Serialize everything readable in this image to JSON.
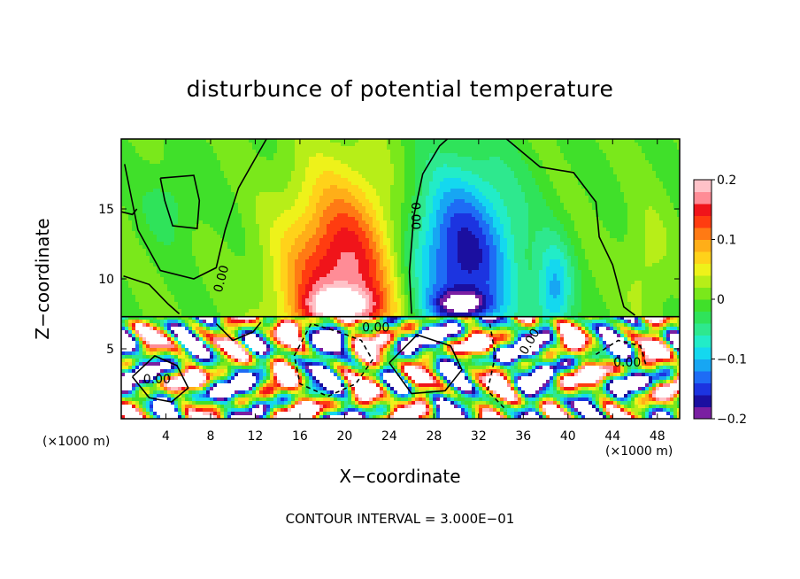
{
  "chart_data": {
    "type": "heatmap",
    "title": "disturbunce of potential temperature",
    "xlabel": "X−coordinate",
    "ylabel": "Z−coordinate",
    "x_unit": "(×1000 m)",
    "z_unit": "(×1000 m)",
    "footer": "CONTOUR INTERVAL = 3.000E−01",
    "x_ticks": [
      4,
      8,
      12,
      16,
      20,
      24,
      28,
      32,
      36,
      40,
      44,
      48
    ],
    "y_ticks": [
      5,
      10,
      15
    ],
    "xlim": [
      0,
      50
    ],
    "ylim": [
      0,
      20
    ],
    "colorbar": {
      "range": [
        -0.2,
        0.2
      ],
      "ticks": [
        0.2,
        0.1,
        0,
        -0.1,
        -0.2
      ],
      "tick_labels": [
        "0.2",
        "0.1",
        "0",
        "−0.1",
        "−0.2"
      ],
      "colors": [
        "#7a1fa2",
        "#1b0fa0",
        "#1c34e0",
        "#1e6cf5",
        "#17a6f3",
        "#14d8ef",
        "#22ecc8",
        "#2ee88e",
        "#2fe35a",
        "#40e02a",
        "#7ae81b",
        "#b7ee18",
        "#eef21a",
        "#ffd21a",
        "#ffae18",
        "#ff7a14",
        "#ff3c10",
        "#f0141a",
        "#ff8c96",
        "#ffc2c8"
      ]
    },
    "contour_labels": [
      {
        "text": "0.00",
        "x": 9.0,
        "z": 10.0,
        "angle": -75
      },
      {
        "text": "0.00",
        "x": 26.3,
        "z": 14.5,
        "angle": 90
      },
      {
        "text": "0.00",
        "x": 3.2,
        "z": 2.8,
        "angle": 0
      },
      {
        "text": "0.00",
        "x": 45.3,
        "z": 4.0,
        "angle": 0
      },
      {
        "text": "0.00",
        "x": 22.8,
        "z": 6.5,
        "angle": 0
      },
      {
        "text": "0.00",
        "x": 36.6,
        "z": 5.5,
        "angle": -60
      }
    ],
    "upper_features": [
      {
        "x": 19.8,
        "z": 9.5,
        "sx": 5.2,
        "sz": 7.5,
        "amp": 0.18,
        "label": "warm plume"
      },
      {
        "x": 30.5,
        "z": 11.5,
        "sx": 5.0,
        "sz": 6.5,
        "amp": -0.17,
        "label": "cold plume"
      },
      {
        "x": 38.8,
        "z": 9.0,
        "sx": 1.6,
        "sz": 3.5,
        "amp": -0.1,
        "label": "cold cell"
      },
      {
        "x": 4.5,
        "z": 15.5,
        "sx": 2.5,
        "sz": 3.0,
        "amp": -0.03,
        "label": "weak cold"
      },
      {
        "x": 47.0,
        "z": 11.0,
        "sx": 2.0,
        "sz": 4.0,
        "amp": 0.03,
        "label": "weak warm"
      }
    ],
    "boundary_z": 7.3,
    "grid": false
  }
}
